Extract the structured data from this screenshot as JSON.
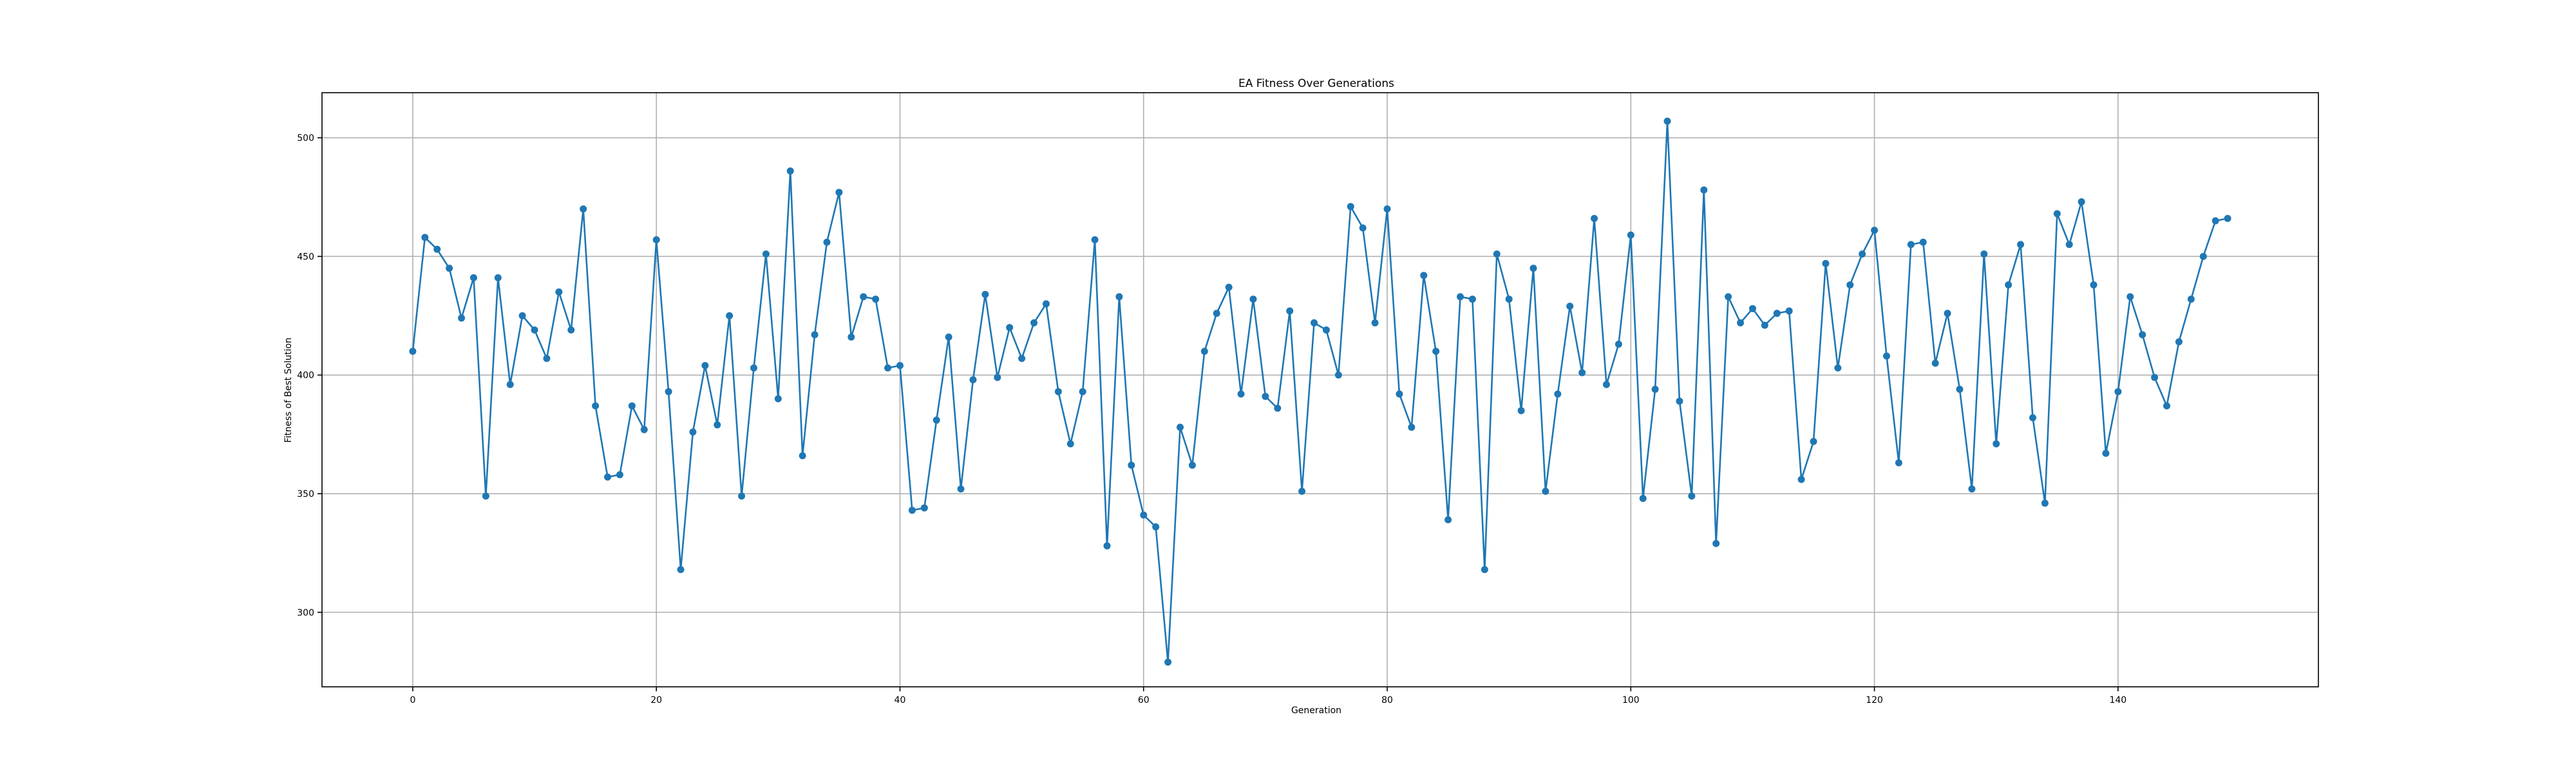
{
  "chart_data": {
    "type": "line",
    "title": "EA Fitness Over Generations",
    "xlabel": "Generation",
    "ylabel": "Fitness of Best Solution",
    "xlim": [
      -7.45,
      156.45
    ],
    "ylim": [
      268.6,
      519.0
    ],
    "xticks": [
      0,
      20,
      40,
      60,
      80,
      100,
      120,
      140
    ],
    "yticks": [
      300,
      350,
      400,
      450,
      500
    ],
    "grid": true,
    "marker": "circle",
    "color": "#1f77b4",
    "series": [
      {
        "x": [
          0,
          1,
          2,
          3,
          4,
          5,
          6,
          7,
          8,
          9,
          10,
          11,
          12,
          13,
          14,
          15,
          16,
          17,
          18,
          19,
          20,
          21,
          22,
          23,
          24,
          25,
          26,
          27,
          28,
          29,
          30,
          31,
          32,
          33,
          34,
          35,
          36,
          37,
          38,
          39,
          40,
          41,
          42,
          43,
          44,
          45,
          46,
          47,
          48,
          49,
          50,
          51,
          52,
          53,
          54,
          55,
          56,
          57,
          58,
          59,
          60,
          61,
          62,
          63,
          64,
          65,
          66,
          67,
          68,
          69,
          70,
          71,
          72,
          73,
          74,
          75,
          76,
          77,
          78,
          79,
          80,
          81,
          82,
          83,
          84,
          85,
          86,
          87,
          88,
          89,
          90,
          91,
          92,
          93,
          94,
          95,
          96,
          97,
          98,
          99,
          100,
          101,
          102,
          103,
          104,
          105,
          106,
          107,
          108,
          109,
          110,
          111,
          112,
          113,
          114,
          115,
          116,
          117,
          118,
          119,
          120,
          121,
          122,
          123,
          124,
          125,
          126,
          127,
          128,
          129,
          130,
          131,
          132,
          133,
          134,
          135,
          136,
          137,
          138,
          139,
          140,
          141,
          142,
          143,
          144,
          145,
          146,
          147,
          148,
          149
        ],
        "values": [
          410,
          458,
          453,
          445,
          424,
          441,
          349,
          441,
          396,
          425,
          419,
          407,
          435,
          419,
          470,
          387,
          357,
          358,
          387,
          377,
          457,
          393,
          318,
          376,
          404,
          379,
          425,
          349,
          403,
          451,
          390,
          486,
          366,
          417,
          456,
          477,
          416,
          433,
          432,
          403,
          404,
          343,
          344,
          381,
          416,
          352,
          398,
          434,
          399,
          420,
          407,
          422,
          430,
          393,
          371,
          393,
          457,
          328,
          433,
          362,
          341,
          336,
          279,
          378,
          362,
          410,
          426,
          437,
          392,
          432,
          391,
          386,
          427,
          351,
          422,
          419,
          400,
          471,
          462,
          422,
          470,
          392,
          378,
          442,
          410,
          339,
          433,
          432,
          318,
          451,
          432,
          385,
          445,
          351,
          392,
          429,
          401,
          466,
          396,
          413,
          459,
          348,
          394,
          507,
          389,
          349,
          478,
          329,
          433,
          422,
          428,
          421,
          426,
          427,
          356,
          372,
          447,
          403,
          438,
          451,
          461,
          408,
          363,
          455,
          456,
          405,
          426,
          394,
          352,
          451,
          371,
          438,
          455,
          382,
          346,
          468,
          455,
          473,
          438,
          367,
          393,
          433,
          417,
          399,
          387,
          414,
          432,
          450,
          465,
          466
        ]
      }
    ]
  }
}
